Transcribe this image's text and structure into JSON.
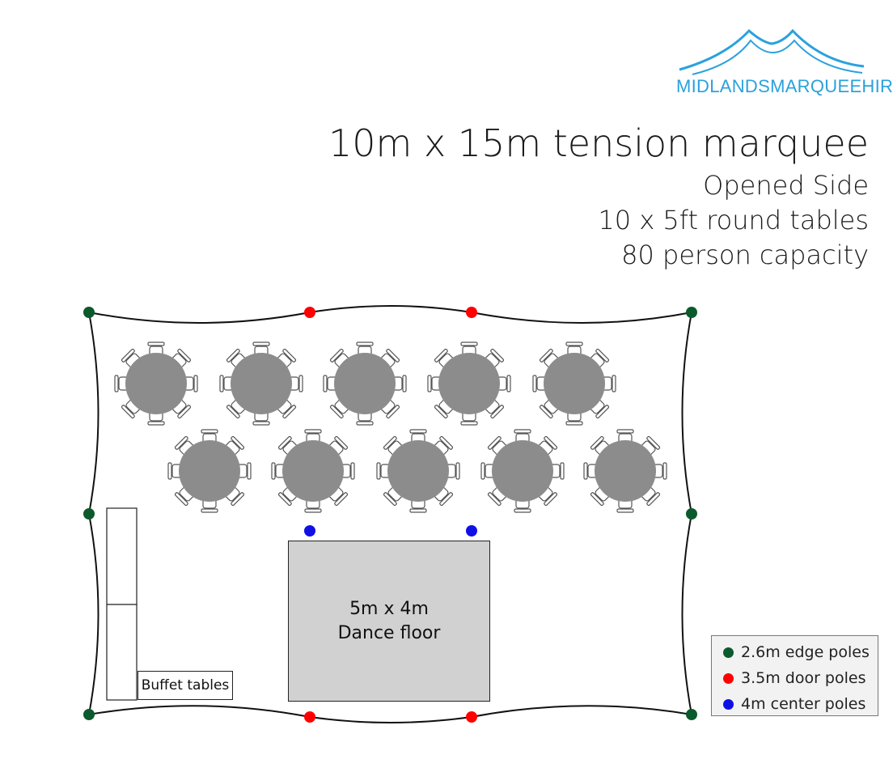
{
  "logo": {
    "text": "MIDLANDSMARQUEEHIRE"
  },
  "header": {
    "title": "10m x 15m tension marquee",
    "lines": [
      "Opened Side",
      "10 x 5ft round tables",
      "80 person capacity"
    ]
  },
  "dance_floor": {
    "line1": "5m x 4m",
    "line2": "Dance floor"
  },
  "buffet": {
    "label": "Buffet tables"
  },
  "legend": [
    {
      "label": "2.6m edge poles",
      "color": "#0b5a2c"
    },
    {
      "label": "3.5m door poles",
      "color": "#ff0000"
    },
    {
      "label": "4m center poles",
      "color": "#1010e6"
    }
  ],
  "colors": {
    "brand": "#2aa1dd",
    "table": "#8c8c8c",
    "dance_floor": "#d1d1d1"
  },
  "round_tables": {
    "count": 10,
    "chairs_per_table": 8
  }
}
